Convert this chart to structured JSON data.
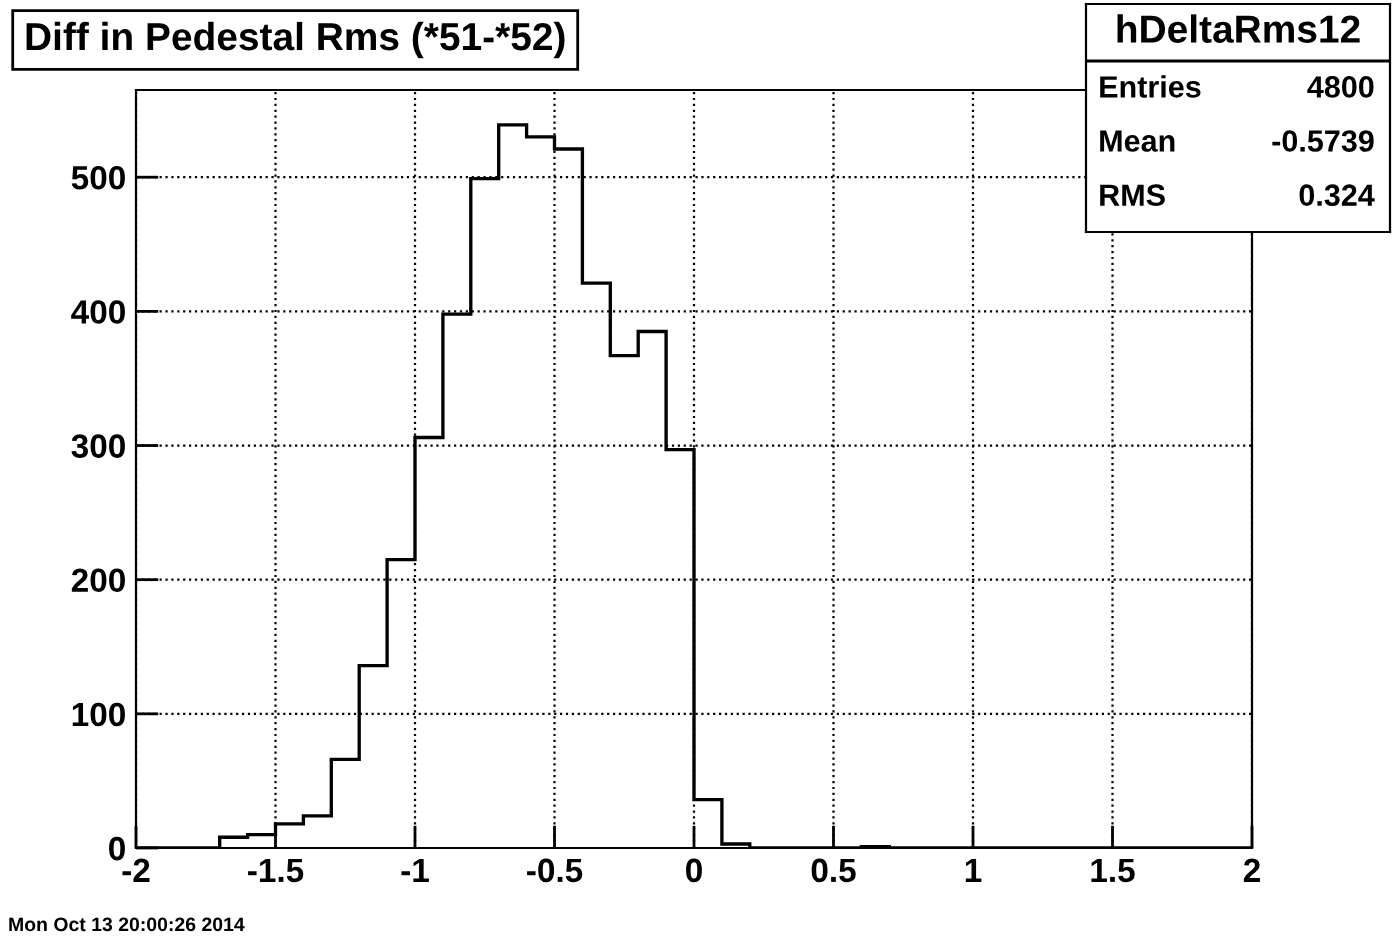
{
  "chart_data": {
    "type": "histogram",
    "title": "Diff in Pedestal Rms (*51-*52)",
    "bins": [
      -2,
      -1.9,
      -1.8,
      -1.7,
      -1.6,
      -1.5,
      -1.4,
      -1.3,
      -1.2,
      -1.1,
      -1,
      -0.9,
      -0.8,
      -0.7,
      -0.6,
      -0.5,
      -0.4,
      -0.3,
      -0.2,
      -0.1,
      0,
      0.1,
      0.2,
      0.3,
      0.4,
      0.5,
      0.6,
      0.7,
      0.8,
      0.9,
      1,
      1.1,
      1.2,
      1.3,
      1.4,
      1.5,
      1.6,
      1.7,
      1.8,
      1.9,
      2
    ],
    "values": [
      0,
      0,
      0,
      8,
      10,
      18,
      24,
      66,
      136,
      215,
      306,
      398,
      499,
      539,
      530,
      521,
      421,
      367,
      385,
      297,
      36,
      3,
      0,
      0,
      0,
      0,
      1,
      0,
      0,
      0,
      0,
      0,
      0,
      0,
      0,
      0,
      0,
      0,
      0,
      0
    ],
    "color": "#000000",
    "xlim": [
      -2,
      2
    ],
    "xticks": [
      -2,
      -1.5,
      -1,
      -0.5,
      0,
      0.5,
      1,
      1.5,
      2
    ],
    "ylim": [
      0,
      565
    ],
    "yticks": [
      0,
      100,
      200,
      300,
      400,
      500
    ],
    "grid": true,
    "annotations": [
      "hDeltaRms12",
      "Entries",
      "4800",
      "Mean",
      "-0.5739",
      "RMS",
      "0.324",
      "Mon Oct 13 20:00:26 2014"
    ]
  }
}
